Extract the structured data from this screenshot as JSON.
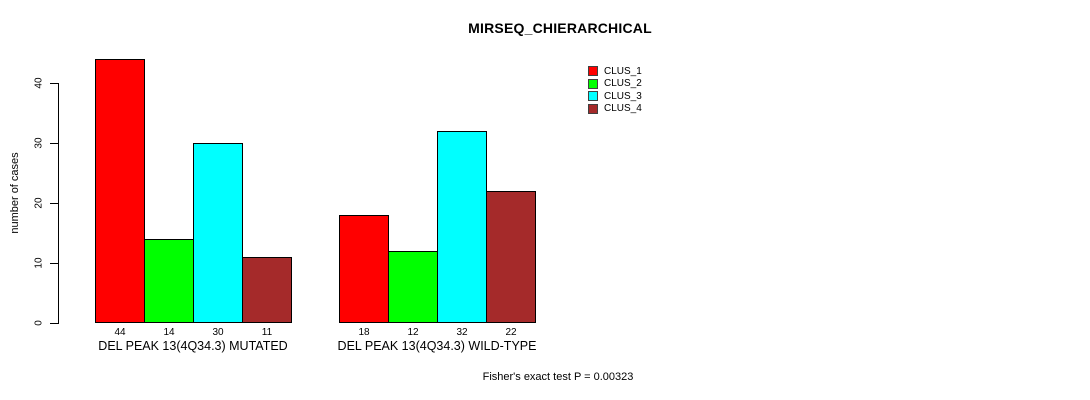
{
  "chart_data": {
    "type": "bar",
    "title": "MIRSEQ_CHIERARCHICAL",
    "ylabel": "number of cases",
    "xlabel": "",
    "ylim": [
      0,
      44
    ],
    "yticks": [
      0,
      10,
      20,
      30,
      40
    ],
    "grid": false,
    "legend_position": "top-right",
    "bar_value_labels": true,
    "categories": [
      "DEL PEAK 13(4Q34.3) MUTATED",
      "DEL PEAK 13(4Q34.3) WILD-TYPE"
    ],
    "series": [
      {
        "name": "CLUS_1",
        "color": "#FF0000",
        "values": [
          44,
          18
        ]
      },
      {
        "name": "CLUS_2",
        "color": "#00FF00",
        "values": [
          14,
          12
        ]
      },
      {
        "name": "CLUS_3",
        "color": "#00FFFF",
        "values": [
          30,
          32
        ]
      },
      {
        "name": "CLUS_4",
        "color": "#A52A2A",
        "values": [
          11,
          22
        ]
      }
    ],
    "annotation": "Fisher's exact test P = 0.00323"
  }
}
